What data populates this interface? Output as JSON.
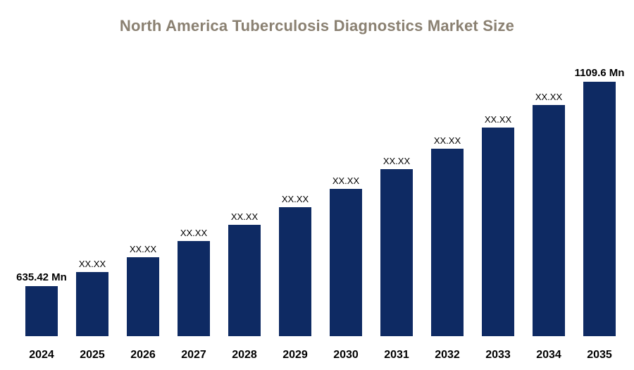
{
  "title": "North America Tuberculosis Diagnostics Market Size",
  "colors": {
    "title": "#8a8071",
    "bar": "#0e2a63",
    "label": "#000000"
  },
  "chart_data": {
    "type": "bar",
    "title": "North America Tuberculosis Diagnostics Market Size",
    "categories": [
      "2024",
      "2025",
      "2026",
      "2027",
      "2028",
      "2029",
      "2030",
      "2031",
      "2032",
      "2033",
      "2034",
      "2035"
    ],
    "bar_labels": [
      "635.42 Mn",
      "XX.XX",
      "XX.XX",
      "XX.XX",
      "XX.XX",
      "XX.XX",
      "XX.XX",
      "XX.XX",
      "XX.XX",
      "XX.XX",
      "XX.XX",
      "1109.6 Mn"
    ],
    "known_values": {
      "2024": 635.42,
      "2035": 1109.6
    },
    "unit": "Mn",
    "estimated_values": [
      635.42,
      668.5,
      703.2,
      739.8,
      778.3,
      818.8,
      861.4,
      906.2,
      953.3,
      1002.9,
      1055.0,
      1109.6
    ],
    "xlabel": "",
    "ylabel": "",
    "ylim": [
      520,
      1140
    ],
    "grid": false,
    "legend": false
  }
}
